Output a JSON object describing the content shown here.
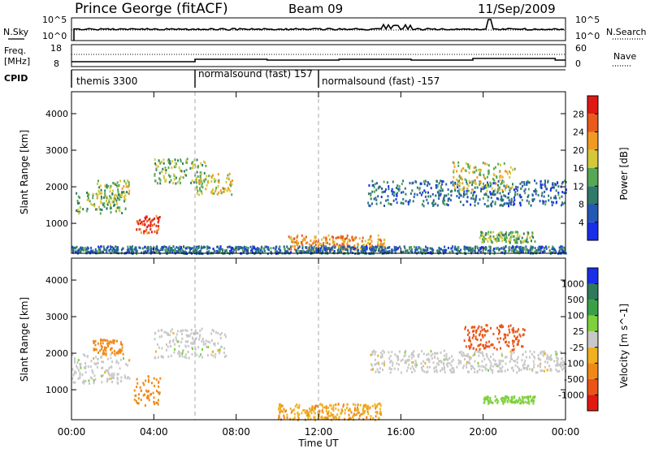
{
  "header": {
    "station": "Prince George (fitACF)",
    "beam": "Beam 09",
    "date": "11/Sep/2009"
  },
  "noise_panel": {
    "left_label": "N.Sky",
    "left_ticks": [
      "10^5",
      "10^0"
    ],
    "right_label": "N.Search",
    "right_ticks": [
      "10^5",
      "10^0"
    ]
  },
  "freq_panel": {
    "left_label_1": "Freq.",
    "left_label_2": "[MHz]",
    "left_ticks": [
      "18",
      "8"
    ],
    "right_label": "Nave",
    "right_ticks": [
      "60",
      "0"
    ]
  },
  "cpid_panel": {
    "label": "CPID",
    "modes": [
      {
        "name": "themis 3300",
        "start_hour": 0
      },
      {
        "name": "normalsound (fast) 157",
        "start_hour": 6
      },
      {
        "name": "normalsound (fast) -157",
        "start_hour": 12
      }
    ]
  },
  "chart_data": [
    {
      "type": "heatmap",
      "title": "Power",
      "ylabel": "Slant Range [km]",
      "xlabel": "Time UT",
      "x_ticks": [
        "00:00",
        "04:00",
        "08:00",
        "12:00",
        "16:00",
        "20:00",
        "00:00"
      ],
      "xlim_hours": [
        0,
        24
      ],
      "ylim_km": [
        180,
        4600
      ],
      "y_ticks": [
        1000,
        2000,
        3000,
        4000
      ],
      "colorbar": {
        "label": "Power [dB]",
        "ticks": [
          "4",
          "8",
          "12",
          "16",
          "20",
          "24",
          "28"
        ],
        "colors": [
          "#1a2ee8",
          "#2358b4",
          "#2f7a6a",
          "#56a854",
          "#d4c83a",
          "#f09a24",
          "#ea5a1a",
          "#e01a12"
        ]
      },
      "regions": [
        {
          "t": [
            0.2,
            2.6
          ],
          "r": [
            1300,
            1900
          ],
          "level": 0.45
        },
        {
          "t": [
            1.2,
            2.8
          ],
          "r": [
            1700,
            2200
          ],
          "level": 0.5
        },
        {
          "t": [
            3.1,
            4.3
          ],
          "r": [
            750,
            1250
          ],
          "level": 0.9
        },
        {
          "t": [
            4.0,
            6.5
          ],
          "r": [
            2100,
            2800
          ],
          "level": 0.45
        },
        {
          "t": [
            6.0,
            7.8
          ],
          "r": [
            1800,
            2400
          ],
          "level": 0.55
        },
        {
          "t": [
            10.5,
            15.2
          ],
          "r": [
            300,
            700
          ],
          "level": 0.7
        },
        {
          "t": [
            14.3,
            24.0
          ],
          "r": [
            1500,
            2200
          ],
          "level": 0.25
        },
        {
          "t": [
            18.5,
            21.5
          ],
          "r": [
            1900,
            2700
          ],
          "level": 0.55
        },
        {
          "t": [
            19.8,
            22.5
          ],
          "r": [
            500,
            800
          ],
          "level": 0.45
        },
        {
          "t": [
            0.0,
            24.0
          ],
          "r": [
            200,
            400
          ],
          "level": 0.25
        }
      ]
    },
    {
      "type": "heatmap",
      "title": "Velocity",
      "ylabel": "Slant Range [km]",
      "xlabel": "Time UT",
      "x_ticks": [
        "00:00",
        "04:00",
        "08:00",
        "12:00",
        "16:00",
        "20:00",
        "00:00"
      ],
      "xlim_hours": [
        0,
        24
      ],
      "ylim_km": [
        180,
        4600
      ],
      "y_ticks": [
        1000,
        2000,
        3000,
        4000
      ],
      "colorbar": {
        "label": "Velocity [m s^-1]",
        "ticks": [
          "1000",
          "500",
          "100",
          "25",
          "-25",
          "-100",
          "-500",
          "-1000"
        ],
        "colors": [
          "#1a2ee8",
          "#2f7a5a",
          "#3aa048",
          "#7ed03c",
          "#c8c8c8",
          "#f0b020",
          "#f08818",
          "#ea5418",
          "#e01a12"
        ]
      },
      "regions": [
        {
          "t": [
            0.0,
            2.8
          ],
          "r": [
            1200,
            2000
          ],
          "value": 0
        },
        {
          "t": [
            1.0,
            2.5
          ],
          "r": [
            2000,
            2400
          ],
          "value": -300
        },
        {
          "t": [
            3.0,
            4.3
          ],
          "r": [
            600,
            1400
          ],
          "value": -300
        },
        {
          "t": [
            4.0,
            7.5
          ],
          "r": [
            1900,
            2700
          ],
          "value": 0
        },
        {
          "t": [
            10.0,
            15.0
          ],
          "r": [
            200,
            650
          ],
          "value": -90
        },
        {
          "t": [
            14.5,
            24.0
          ],
          "r": [
            1500,
            2100
          ],
          "value": 0
        },
        {
          "t": [
            19.0,
            22.0
          ],
          "r": [
            2100,
            2800
          ],
          "value": -600
        },
        {
          "t": [
            20.0,
            22.5
          ],
          "r": [
            650,
            850
          ],
          "value": 60
        }
      ]
    }
  ]
}
